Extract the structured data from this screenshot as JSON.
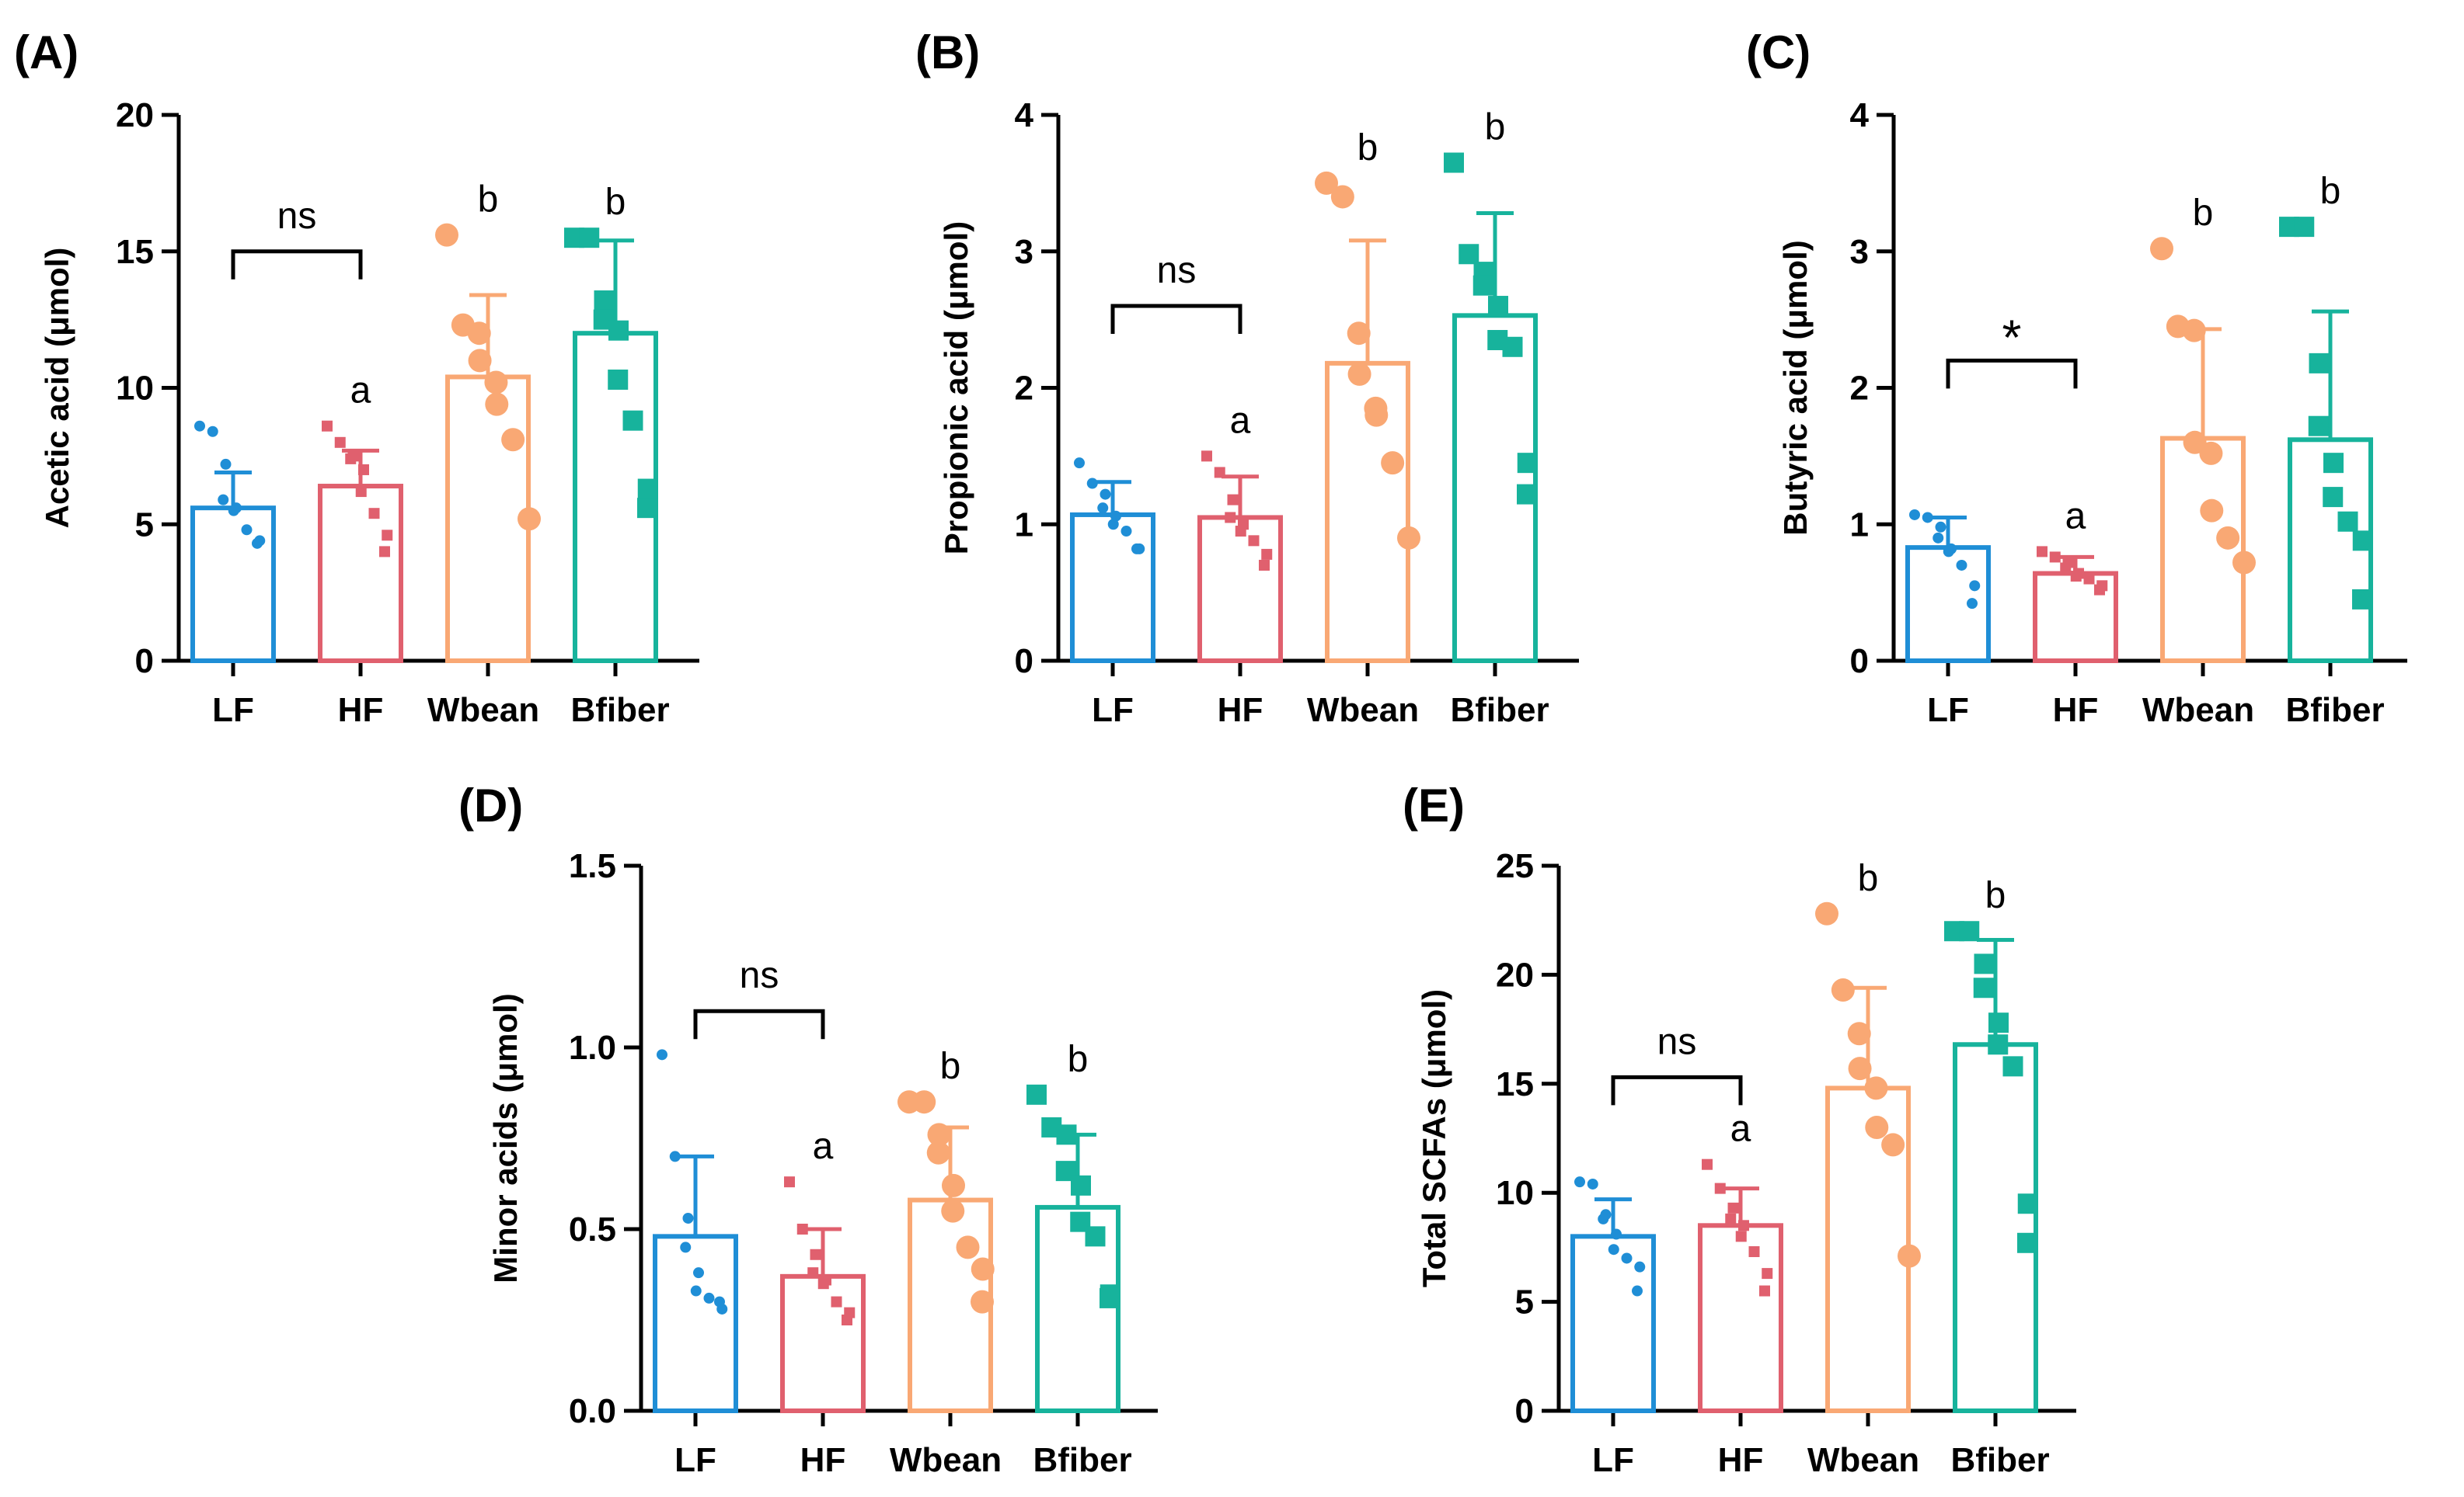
{
  "colors": {
    "LF": "#1f8ed6",
    "HF": "#e0606e",
    "Wbean": "#f9a874",
    "Bfiber": "#17b39c",
    "axis": "#000000"
  },
  "chart_data": [
    {
      "type": "bar",
      "panel": "(A)",
      "ylabel": "Acetic acid (μmol)",
      "ylim": [
        0,
        20
      ],
      "yticks": [
        0,
        5,
        10,
        15,
        20
      ],
      "ytick_labels": [
        "0",
        "5",
        "10",
        "15",
        "20"
      ],
      "categories": [
        "LF",
        "HF",
        "Wbean",
        "Bfiber"
      ],
      "means": [
        5.6,
        6.4,
        10.4,
        12.0
      ],
      "sd": [
        1.3,
        1.3,
        3.0,
        3.4
      ],
      "points": [
        [
          8.6,
          8.4,
          7.2,
          5.9,
          5.6,
          5.5,
          4.8,
          4.4,
          4.3
        ],
        [
          8.6,
          8.0,
          7.5,
          7.4,
          7.0,
          6.2,
          5.4,
          4.6,
          4.0
        ],
        [
          15.6,
          12.3,
          12.0,
          11.0,
          10.2,
          9.4,
          8.1,
          5.2
        ],
        [
          15.5,
          15.5,
          13.2,
          12.5,
          12.1,
          10.3,
          8.8,
          6.3,
          5.6
        ]
      ],
      "group_labels": [
        "",
        "a",
        "b",
        "b"
      ],
      "bracket": {
        "from": 0,
        "to": 1,
        "label": "ns",
        "y": 15
      }
    },
    {
      "type": "bar",
      "panel": "(B)",
      "ylabel": "Propionic acid (μmol)",
      "ylim": [
        0,
        4
      ],
      "yticks": [
        0,
        1,
        2,
        3,
        4
      ],
      "ytick_labels": [
        "0",
        "1",
        "2",
        "3",
        "4"
      ],
      "categories": [
        "LF",
        "HF",
        "Wbean",
        "Bfiber"
      ],
      "means": [
        1.07,
        1.05,
        2.18,
        2.53
      ],
      "sd": [
        0.24,
        0.3,
        0.9,
        0.75
      ],
      "points": [
        [
          1.45,
          1.3,
          1.22,
          1.12,
          1.06,
          1.0,
          0.95,
          0.82,
          0.82
        ],
        [
          1.5,
          1.38,
          1.18,
          1.05,
          1.0,
          0.95,
          0.88,
          0.78,
          0.7
        ],
        [
          3.5,
          3.4,
          2.4,
          2.1,
          1.85,
          1.8,
          1.45,
          0.9
        ],
        [
          3.65,
          2.98,
          2.85,
          2.75,
          2.6,
          2.35,
          2.3,
          1.45,
          1.22
        ]
      ],
      "group_labels": [
        "",
        "a",
        "b",
        "b"
      ],
      "bracket": {
        "from": 0,
        "to": 1,
        "label": "ns",
        "y": 2.6
      }
    },
    {
      "type": "bar",
      "panel": "(C)",
      "ylabel": "Butyric acid (μmol)",
      "ylim": [
        0,
        4
      ],
      "yticks": [
        0,
        1,
        2,
        3,
        4
      ],
      "ytick_labels": [
        "0",
        "1",
        "2",
        "3",
        "4"
      ],
      "categories": [
        "LF",
        "HF",
        "Wbean",
        "Bfiber"
      ],
      "means": [
        0.83,
        0.64,
        1.63,
        1.62
      ],
      "sd": [
        0.22,
        0.12,
        0.8,
        0.94
      ],
      "points": [
        [
          1.07,
          1.05,
          0.98,
          0.9,
          0.82,
          0.8,
          0.7,
          0.55,
          0.42
        ],
        [
          0.8,
          0.76,
          0.72,
          0.68,
          0.64,
          0.62,
          0.6,
          0.55,
          0.52
        ],
        [
          3.02,
          2.45,
          2.42,
          1.6,
          1.52,
          1.1,
          0.9,
          0.72
        ],
        [
          3.18,
          3.18,
          2.18,
          1.72,
          1.45,
          1.2,
          1.02,
          0.88,
          0.45
        ]
      ],
      "group_labels": [
        "",
        "a",
        "b",
        "b"
      ],
      "bracket": {
        "from": 0,
        "to": 1,
        "label": "*",
        "y": 2.2
      }
    },
    {
      "type": "bar",
      "panel": "(D)",
      "ylabel": "Minor acids (μmol)",
      "ylim": [
        0,
        1.5
      ],
      "yticks": [
        0,
        0.5,
        1.0,
        1.5
      ],
      "ytick_labels": [
        "0.0",
        "0.5",
        "1.0",
        "1.5"
      ],
      "categories": [
        "LF",
        "HF",
        "Wbean",
        "Bfiber"
      ],
      "means": [
        0.48,
        0.37,
        0.58,
        0.56
      ],
      "sd": [
        0.22,
        0.13,
        0.2,
        0.2
      ],
      "points": [
        [
          0.98,
          0.7,
          0.53,
          0.45,
          0.38,
          0.33,
          0.31,
          0.28,
          0.3
        ],
        [
          0.63,
          0.5,
          0.43,
          0.38,
          0.36,
          0.35,
          0.3,
          0.27,
          0.25
        ],
        [
          0.85,
          0.85,
          0.76,
          0.71,
          0.62,
          0.55,
          0.45,
          0.39,
          0.3
        ],
        [
          0.87,
          0.78,
          0.76,
          0.66,
          0.62,
          0.52,
          0.48,
          0.32,
          0.31
        ]
      ],
      "group_labels": [
        "",
        "a",
        "b",
        "b"
      ],
      "bracket": {
        "from": 0,
        "to": 1,
        "label": "ns",
        "y": 1.1
      }
    },
    {
      "type": "bar",
      "panel": "(E)",
      "ylabel": "Total SCFAs (μmol)",
      "ylim": [
        0,
        25
      ],
      "yticks": [
        0,
        5,
        10,
        15,
        20,
        25
      ],
      "ytick_labels": [
        "0",
        "5",
        "10",
        "15",
        "20",
        "25"
      ],
      "categories": [
        "LF",
        "HF",
        "Wbean",
        "Bfiber"
      ],
      "means": [
        8.0,
        8.5,
        14.8,
        16.8
      ],
      "sd": [
        1.7,
        1.7,
        4.6,
        4.8
      ],
      "points": [
        [
          10.5,
          10.4,
          9.0,
          8.8,
          8.1,
          7.4,
          7.0,
          6.6,
          5.5
        ],
        [
          11.3,
          10.2,
          9.3,
          8.8,
          8.5,
          8.0,
          7.3,
          6.3,
          5.5
        ],
        [
          22.8,
          19.3,
          17.3,
          15.7,
          14.8,
          13.0,
          12.2,
          7.1
        ],
        [
          22.0,
          22.0,
          20.5,
          19.4,
          17.8,
          16.8,
          15.8,
          9.5,
          7.7
        ]
      ],
      "group_labels": [
        "",
        "a",
        "b",
        "b"
      ],
      "bracket": {
        "from": 0,
        "to": 1,
        "label": "ns",
        "y": 15.3
      }
    }
  ]
}
